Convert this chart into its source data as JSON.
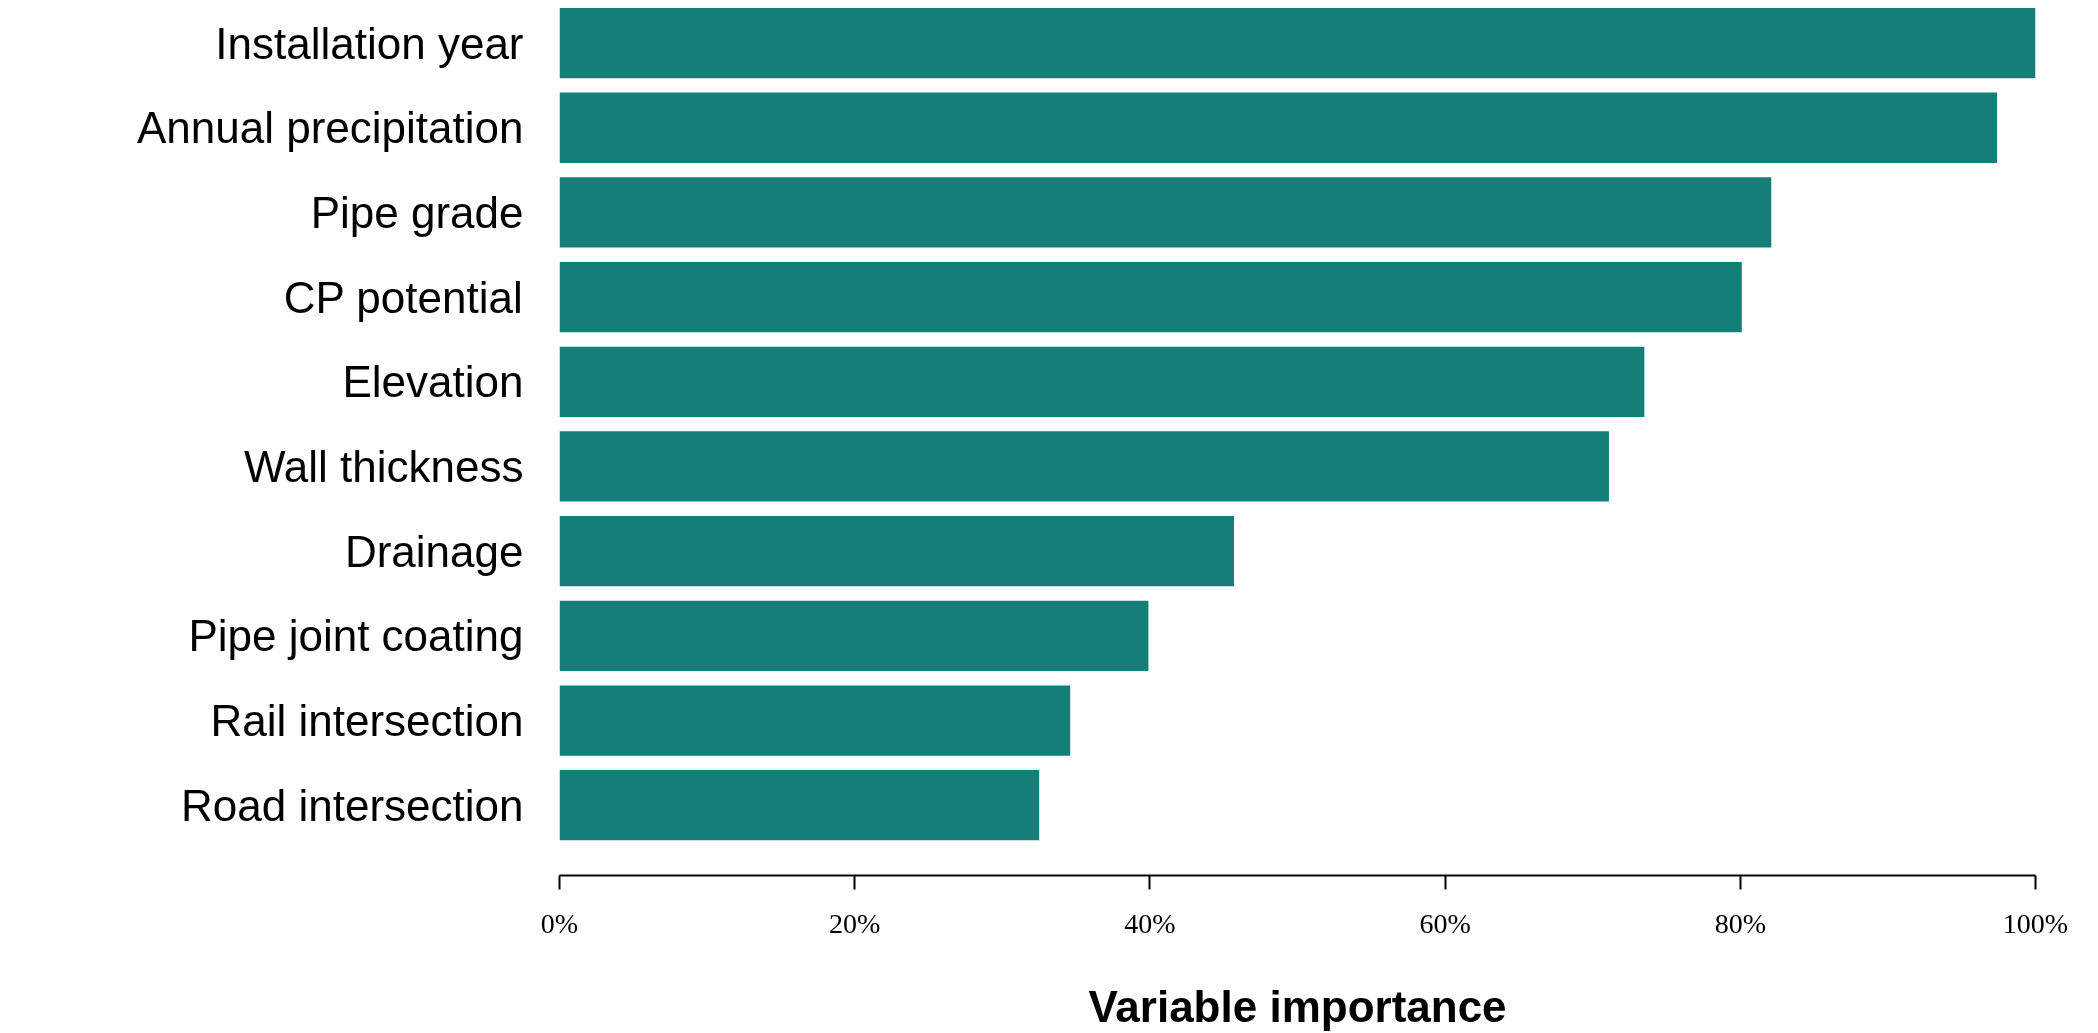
{
  "chart_data": {
    "type": "bar",
    "orientation": "horizontal",
    "xlabel": "Variable importance",
    "categories": [
      "Installation year",
      "Annual precipitation",
      "Pipe grade",
      "CP potential",
      "Elevation",
      "Wall thickness",
      "Drainage",
      "Pipe joint coating",
      "Rail intersection",
      "Road intersection"
    ],
    "values": [
      100,
      97.4,
      82.1,
      80.1,
      73.5,
      71.1,
      45.7,
      39.9,
      34.6,
      32.5
    ],
    "color": "#167e78",
    "xlim": [
      0,
      100
    ],
    "xticks": [
      {
        "value": 0,
        "label": "0%"
      },
      {
        "value": 20,
        "label": "20%"
      },
      {
        "value": 40,
        "label": "40%"
      },
      {
        "value": 60,
        "label": "60%"
      },
      {
        "value": 80,
        "label": "80%"
      },
      {
        "value": 100,
        "label": "100%"
      }
    ],
    "grid": false
  }
}
